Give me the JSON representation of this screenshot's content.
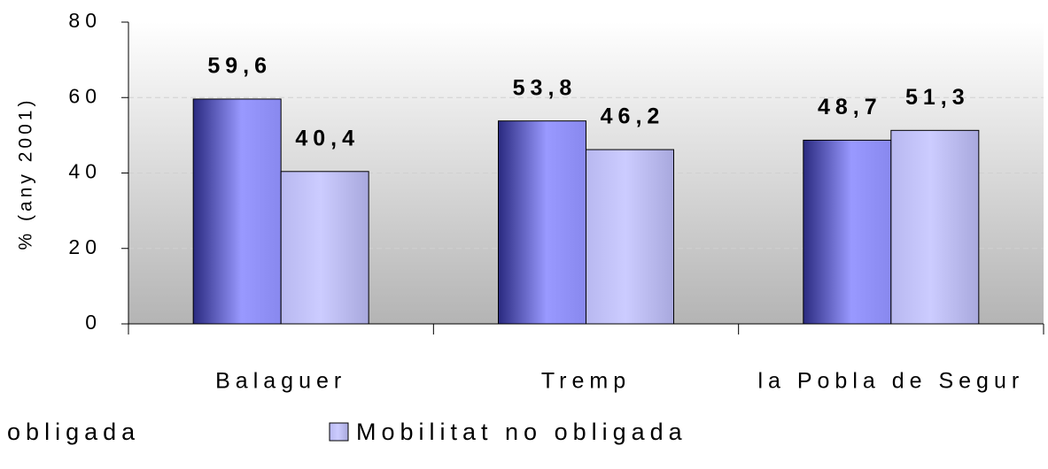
{
  "chart_data": {
    "type": "bar",
    "categories": [
      "Balaguer",
      "Tremp",
      "la Pobla de Segur"
    ],
    "y_label": "% (any 2001)",
    "series": [
      {
        "name": "Mobilitat obligada",
        "color": "#9999ff",
        "values": [
          59.6,
          53.8,
          48.7
        ],
        "value_labels": [
          "59,6",
          "53,8",
          "48,7"
        ]
      },
      {
        "name": "Mobilitat no obligada",
        "color": "#ccccff",
        "values": [
          40.4,
          46.2,
          51.3
        ],
        "value_labels": [
          "40,4",
          "46,2",
          "51,3"
        ]
      }
    ],
    "ylim": [
      0,
      80
    ],
    "yticks": [
      0,
      20,
      40,
      60,
      80
    ],
    "grid": true,
    "legend": "bottom"
  }
}
